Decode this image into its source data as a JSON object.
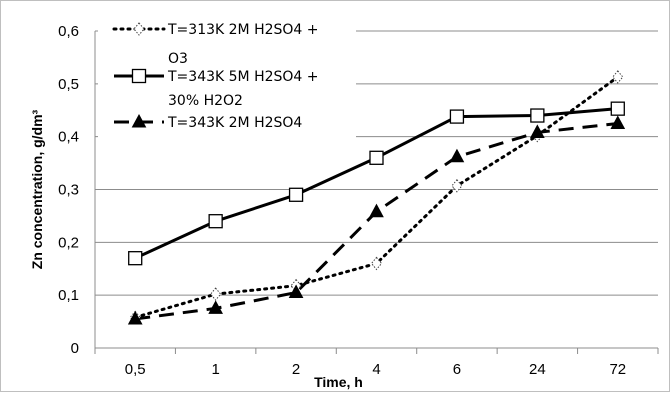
{
  "chart_data": {
    "type": "line",
    "categories": [
      "0,5",
      "1",
      "2",
      "4",
      "6",
      "24",
      "72"
    ],
    "xlabel": "Time, h",
    "ylabel": "Zn concentration, g/dm³",
    "ylim": [
      0,
      0.6
    ],
    "yticks": [
      0,
      0.1,
      0.2,
      0.3,
      0.4,
      0.5,
      0.6
    ],
    "ytick_labels": [
      "0",
      "0,1",
      "0,2",
      "0,3",
      "0,4",
      "0,5",
      "0,6"
    ],
    "grid": "horizontal",
    "legend_position": "top-left",
    "series": [
      {
        "name": "T=313K 2M H2SO4 + O3",
        "legend_lines": [
          "T=313K 2M H2SO4 +",
          "O3"
        ],
        "values": [
          0.058,
          0.102,
          0.118,
          0.16,
          0.307,
          0.402,
          0.513
        ],
        "line_style": "dotted",
        "marker": "diamond-open",
        "color": "#000000"
      },
      {
        "name": "T=343K 5M H2SO4 + 30% H2O2",
        "legend_lines": [
          "T=343K 5M H2SO4 +",
          "30% H2O2"
        ],
        "values": [
          0.17,
          0.24,
          0.29,
          0.36,
          0.438,
          0.44,
          0.453
        ],
        "line_style": "solid",
        "marker": "square-open",
        "color": "#000000"
      },
      {
        "name": "T=343K 2M H2SO4",
        "legend_lines": [
          "T=343K 2M H2SO4"
        ],
        "values": [
          0.055,
          0.075,
          0.105,
          0.258,
          0.362,
          0.408,
          0.425
        ],
        "line_style": "dashed",
        "marker": "triangle-filled",
        "color": "#000000"
      }
    ]
  }
}
